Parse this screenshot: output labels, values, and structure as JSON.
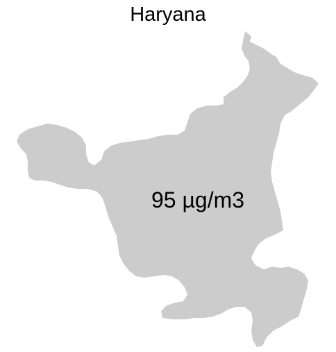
{
  "map": {
    "title": "Haryana",
    "region_name": "Haryana",
    "value_label": "95 µg/m3",
    "fill_color": "#cccccc",
    "background_color": "#ffffff"
  }
}
